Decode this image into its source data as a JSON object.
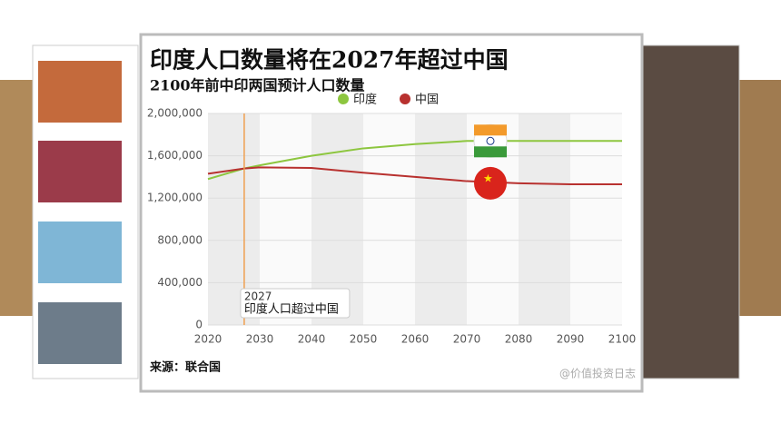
{
  "chart_data": {
    "type": "line",
    "title": "印度人口数量将在2027年超过中国",
    "subtitle": "2100年前中印两国预计人口数量",
    "x": [
      2020,
      2027,
      2030,
      2040,
      2050,
      2060,
      2070,
      2080,
      2090,
      2100
    ],
    "series": [
      {
        "name": "印度",
        "color": "#8dc63f",
        "values": [
          1380000,
          1480000,
          1510000,
          1600000,
          1670000,
          1710000,
          1740000,
          1740000,
          1740000,
          1740000
        ]
      },
      {
        "name": "中国",
        "color": "#b8312f",
        "values": [
          1430000,
          1480000,
          1490000,
          1485000,
          1440000,
          1400000,
          1360000,
          1340000,
          1330000,
          1330000
        ]
      }
    ],
    "xlim": [
      2020,
      2100
    ],
    "xticks": [
      2020,
      2030,
      2040,
      2050,
      2060,
      2070,
      2080,
      2090,
      2100
    ],
    "ylim": [
      0,
      2000000
    ],
    "yticks": [
      0,
      {
        "value": 400000,
        "label": "400,000"
      },
      {
        "value": 800000,
        "label": "800,000"
      },
      {
        "value": 1200000,
        "label": "1,200,000"
      },
      {
        "value": 1600000,
        "label": "1,600,000"
      },
      {
        "value": 2000000,
        "label": "2,000,000"
      }
    ],
    "grid": true,
    "annotation": {
      "x": 2027,
      "year": "2027",
      "text": "印度人口超过中国",
      "color": "#f0a050"
    },
    "source": "来源：联合国",
    "watermark": "@价值投资日志"
  }
}
